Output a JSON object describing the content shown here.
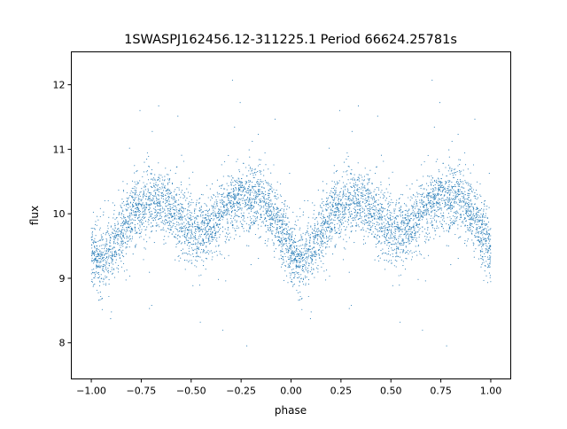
{
  "chart_data": {
    "type": "scatter",
    "title": "1SWASPJ162456.12-311225.1 Period 66624.25781s",
    "xlabel": "phase",
    "ylabel": "flux",
    "xlim": [
      -1.1,
      1.1
    ],
    "ylim": [
      7.44,
      12.51
    ],
    "xticks": [
      -1.0,
      -0.75,
      -0.5,
      -0.25,
      0.0,
      0.25,
      0.5,
      0.75,
      1.0
    ],
    "xtick_labels": [
      "−1.00",
      "−0.75",
      "−0.50",
      "−0.25",
      "0.00",
      "0.25",
      "0.50",
      "0.75",
      "1.00"
    ],
    "yticks": [
      8,
      9,
      10,
      11,
      12
    ],
    "ytick_labels": [
      "8",
      "9",
      "10",
      "11",
      "12"
    ],
    "grid": false,
    "marker_color": "#1f77b4",
    "x_range_of_points": [
      -1.0,
      1.0
    ],
    "flux_spread_typical": 0.25,
    "mean_curve": {
      "phase": [
        0.0,
        0.05,
        0.1,
        0.15,
        0.2,
        0.25,
        0.3,
        0.35,
        0.4,
        0.45,
        0.5,
        0.55,
        0.6,
        0.65,
        0.7,
        0.75,
        0.8,
        0.85,
        0.9,
        0.95,
        1.0
      ],
      "flux": [
        9.45,
        9.25,
        9.4,
        9.7,
        9.95,
        10.1,
        10.2,
        10.2,
        10.05,
        9.9,
        9.75,
        9.7,
        9.8,
        10.0,
        10.15,
        10.25,
        10.3,
        10.2,
        10.0,
        9.75,
        9.45
      ]
    }
  }
}
